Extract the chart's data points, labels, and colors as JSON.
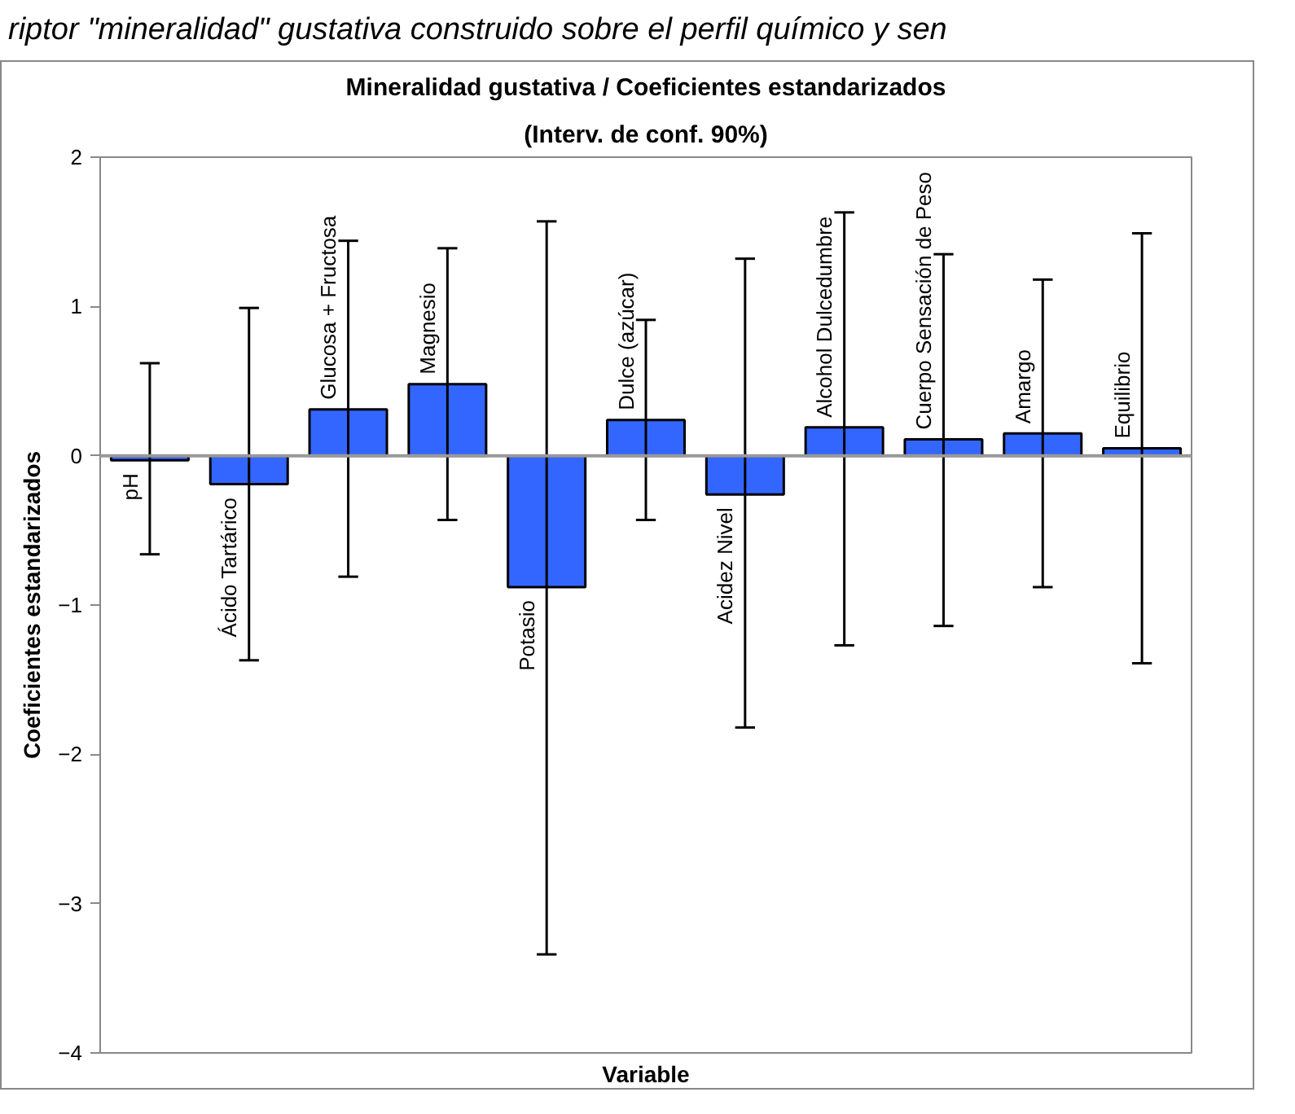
{
  "chart_data": {
    "type": "bar",
    "title": "Mineralidad gustativa / Coeficientes estandarizados",
    "subtitle": "(Interv. de conf. 90%)",
    "xlabel": "Variable",
    "ylabel": "Coeficientes estandarizados",
    "annotations": [
      "riptor \"mineralidad\" gustativa construido sobre el perfil químico y sen"
    ],
    "categories": [
      "pH",
      "Ácido Tartárico",
      "Glucosa + Fructosa",
      "Magnesio",
      "Potasio",
      "Dulce (azúcar)",
      "Acidez Nivel",
      "Alcohol Dulcedumbre",
      "Cuerpo Sensación  de Peso",
      "Amargo",
      "Equilibrio"
    ],
    "values": [
      -0.03,
      -0.19,
      0.31,
      0.48,
      -0.88,
      0.24,
      -0.26,
      0.19,
      0.11,
      0.15,
      0.05
    ],
    "errors": [
      [
        -0.66,
        0.62
      ],
      [
        -1.37,
        0.99
      ],
      [
        -0.81,
        1.44
      ],
      [
        -0.43,
        1.39
      ],
      [
        -3.34,
        1.57
      ],
      [
        -0.43,
        0.91
      ],
      [
        -1.82,
        1.32
      ],
      [
        -1.27,
        1.63
      ],
      [
        -1.14,
        1.35
      ],
      [
        -0.88,
        1.18
      ],
      [
        -1.39,
        1.49
      ]
    ],
    "color": "#3366ff",
    "ylim": [
      -4,
      2
    ],
    "yticks": [
      -4,
      -3,
      -2,
      -1,
      0,
      1,
      2
    ],
    "grid": false
  }
}
